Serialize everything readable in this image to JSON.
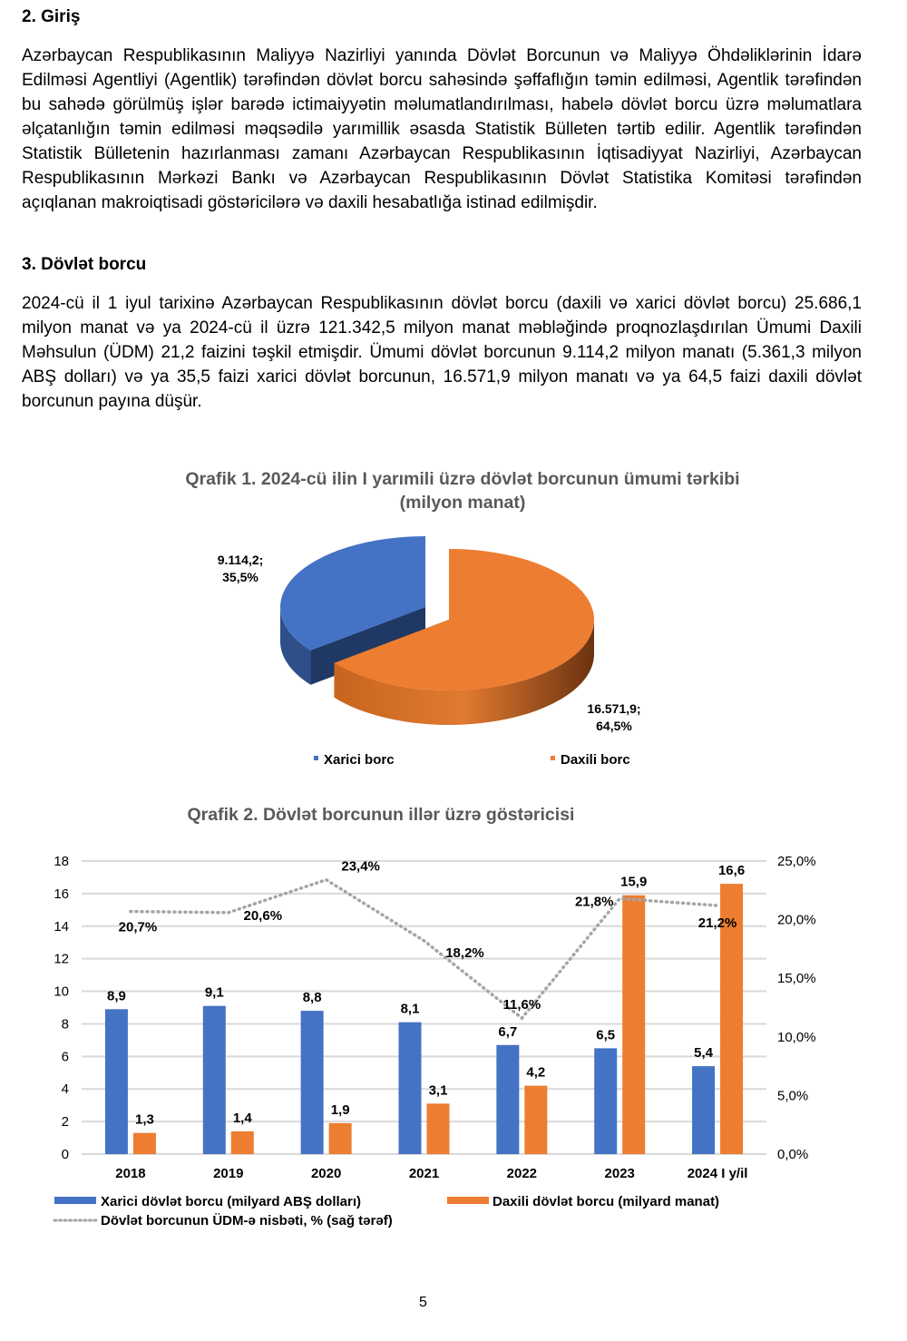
{
  "section2": {
    "heading": "2. Giriş",
    "paragraph": "Azərbaycan Respublikasının Maliyyə Nazirliyi yanında Dövlət Borcunun və Maliyyə Öhdəliklərinin İdarə Edilməsi Agentliyi (Agentlik) tərəfindən dövlət borcu sahəsində şəffaflığın təmin edilməsi, Agentlik tərəfindən bu sahədə görülmüş işlər barədə ictimaiyyətin məlumatlandırılması, habelə dövlət borcu üzrə məlumatlara əlçatanlığın təmin edilməsi məqsədilə yarımillik əsasda Statistik Bülleten tərtib edilir. Agentlik tərəfindən Statistik Bülletenin hazırlanması zamanı Azərbaycan Respublikasının İqtisadiyyat Nazirliyi, Azərbaycan Respublikasının Mərkəzi Bankı və Azərbaycan Respublikasının Dövlət Statistika Komitəsi tərəfindən açıqlanan makroiqtisadi göstəricilərə və daxili hesabatlığa istinad edilmişdir."
  },
  "section3": {
    "heading": "3. Dövlət borcu",
    "paragraph": "2024-cü il 1 iyul tarixinə Azərbaycan Respublikasının dövlət borcu (daxili və xarici dövlət borcu) 25.686,1 milyon manat və ya 2024-cü il üzrə 121.342,5 milyon manat məbləğində proqnozlaşdırılan Ümumi Daxili Məhsulun (ÜDM) 21,2 faizini təşkil etmişdir. Ümumi dövlət borcunun 9.114,2 milyon manatı (5.361,3 milyon ABŞ dolları) və ya 35,5 faizi xarici dövlət borcunun, 16.571,9 milyon manatı və ya 64,5 faizi daxili dövlət borcunun payına düşür."
  },
  "chart_data": [
    {
      "type": "pie",
      "title": "Qrafik 1. 2024-cü ilin I yarımili üzrə dövlət borcunun ümumi tərkibi (milyon manat)",
      "title_line1": "Qrafik 1. 2024-cü ilin I yarımili üzrə dövlət borcunun ümumi tərkibi",
      "title_line2": "(milyon manat)",
      "slices": [
        {
          "name": "Xarici borc",
          "value": 9114.2,
          "percent": 35.5,
          "label_value": "9.114,2;",
          "label_percent": "35,5%",
          "color": "#4472C4"
        },
        {
          "name": "Daxili borc",
          "value": 16571.9,
          "percent": 64.5,
          "label_value": "16.571,9;",
          "label_percent": "64,5%",
          "color": "#ED7D31"
        }
      ],
      "legend_position": "bottom",
      "style": "3d"
    },
    {
      "type": "bar",
      "title": "Qrafik 2. Dövlət borcunun illər üzrə göstəricisi",
      "categories": [
        "2018",
        "2019",
        "2020",
        "2021",
        "2022",
        "2023",
        "2024 I y/il"
      ],
      "series": [
        {
          "name": "Xarici dövlət borcu (milyard ABŞ dolları)",
          "type": "bar",
          "axis": "left",
          "color": "#4472C4",
          "values": [
            8.9,
            9.1,
            8.8,
            8.1,
            6.7,
            6.5,
            5.4
          ],
          "labels": [
            "8,9",
            "9,1",
            "8,8",
            "8,1",
            "6,7",
            "6,5",
            "5,4"
          ]
        },
        {
          "name": "Daxili dövlət borcu (milyard manat)",
          "type": "bar",
          "axis": "left",
          "color": "#ED7D31",
          "values": [
            1.3,
            1.4,
            1.9,
            3.1,
            4.2,
            15.9,
            16.6
          ],
          "labels": [
            "1,3",
            "1,4",
            "1,9",
            "3,1",
            "4,2",
            "15,9",
            "16,6"
          ]
        },
        {
          "name": "Dövlət borcunun ÜDM-ə nisbəti, % (sağ tərəf)",
          "type": "line",
          "style": "dotted",
          "axis": "right",
          "color": "#A5A5A5",
          "values": [
            20.7,
            20.6,
            23.4,
            18.2,
            11.6,
            21.8,
            21.2
          ],
          "labels": [
            "20,7%",
            "20,6%",
            "23,4%",
            "18,2%",
            "11,6%",
            "21,8%",
            "21,2%"
          ]
        }
      ],
      "y_left": {
        "lim": [
          0,
          18
        ],
        "ticks": [
          "0",
          "2",
          "4",
          "6",
          "8",
          "10",
          "12",
          "14",
          "16",
          "18"
        ]
      },
      "y_right": {
        "lim": [
          0,
          25
        ],
        "ticks": [
          "0,0%",
          "5,0%",
          "10,0%",
          "15,0%",
          "20,0%",
          "25,0%"
        ]
      },
      "grid": true,
      "legend_position": "bottom"
    }
  ],
  "page_number": "5"
}
